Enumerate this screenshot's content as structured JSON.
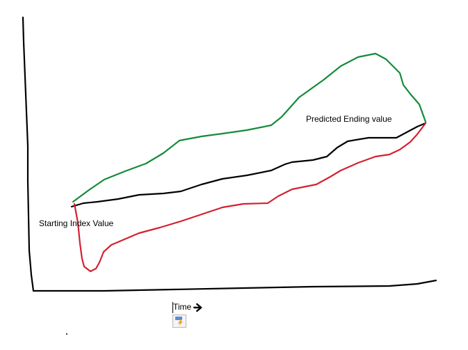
{
  "labels": {
    "start": "Starting Index Value",
    "end": "Predicted Ending value",
    "x_axis": "Time"
  }
}
